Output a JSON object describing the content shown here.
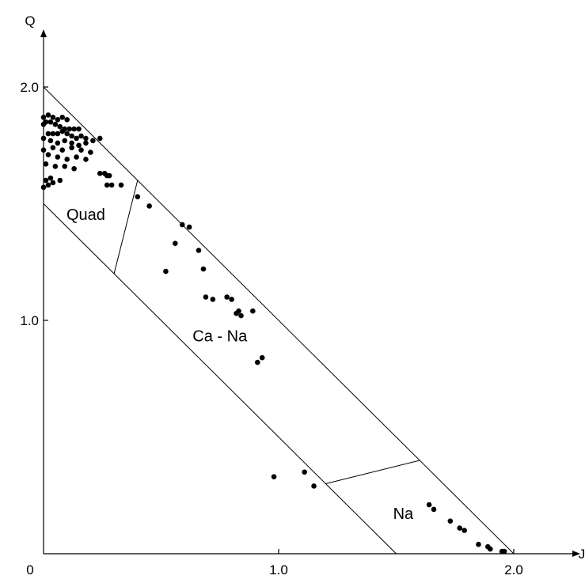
{
  "chart_data": {
    "type": "scatter",
    "title": "",
    "xlabel": "J",
    "ylabel": "Q",
    "origin_label": "0",
    "xlim": [
      0,
      2.25
    ],
    "ylim": [
      0,
      2.1
    ],
    "x_ticks": [
      {
        "value": 1.0,
        "label": "1.0"
      },
      {
        "value": 2.0,
        "label": "2.0"
      }
    ],
    "y_ticks": [
      {
        "value": 1.0,
        "label": "1.0"
      },
      {
        "value": 2.0,
        "label": "2.0"
      }
    ],
    "grid": false,
    "field_boundaries": [
      {
        "name": "upper-limit",
        "x": [
          0,
          2.0
        ],
        "y": [
          2.0,
          0
        ]
      },
      {
        "name": "lower-limit",
        "x": [
          0,
          1.5
        ],
        "y": [
          1.5,
          0
        ]
      },
      {
        "name": "quad-ca-na-divider",
        "x": [
          0.3,
          0.4
        ],
        "y": [
          1.2,
          1.6
        ]
      },
      {
        "name": "ca-na-na-divider",
        "x": [
          1.2,
          1.6
        ],
        "y": [
          0.3,
          0.4
        ]
      }
    ],
    "field_labels": [
      {
        "id": "quad",
        "text": "Quad",
        "x": 0.18,
        "y": 1.43
      },
      {
        "id": "ca-na",
        "text": "Ca - Na",
        "x": 0.75,
        "y": 0.91
      },
      {
        "id": "na",
        "text": "Na",
        "x": 1.53,
        "y": 0.15
      }
    ],
    "series": [
      {
        "marker": "filled-circle",
        "x": [
          0.0,
          0.02,
          0.04,
          0.06,
          0.08,
          0.1,
          0.01,
          0.03,
          0.05,
          0.07,
          0.09,
          0.11,
          0.13,
          0.15,
          0.0,
          0.02,
          0.04,
          0.06,
          0.08,
          0.1,
          0.12,
          0.14,
          0.16,
          0.18,
          0.0,
          0.03,
          0.06,
          0.09,
          0.12,
          0.15,
          0.18,
          0.21,
          0.24,
          0.0,
          0.04,
          0.08,
          0.12,
          0.16,
          0.2,
          0.02,
          0.06,
          0.1,
          0.14,
          0.18,
          0.01,
          0.05,
          0.09,
          0.13,
          0.03,
          0.07,
          0.01,
          0.04,
          0.0,
          0.02,
          0.24,
          0.26,
          0.27,
          0.28,
          0.27,
          0.29,
          0.33,
          0.4,
          0.45,
          0.52,
          0.56,
          0.59,
          0.62,
          0.66,
          0.68,
          0.69,
          0.72,
          0.78,
          0.8,
          0.82,
          0.83,
          0.84,
          0.89,
          0.91,
          0.93,
          0.98,
          1.11,
          1.15,
          1.64,
          1.66,
          1.73,
          1.77,
          1.79,
          1.85,
          1.89,
          1.9,
          1.95,
          1.96
        ],
        "y": [
          1.87,
          1.88,
          1.87,
          1.86,
          1.87,
          1.86,
          1.85,
          1.85,
          1.84,
          1.83,
          1.82,
          1.82,
          1.82,
          1.82,
          1.84,
          1.8,
          1.8,
          1.8,
          1.81,
          1.8,
          1.79,
          1.78,
          1.79,
          1.78,
          1.78,
          1.77,
          1.76,
          1.77,
          1.76,
          1.75,
          1.76,
          1.77,
          1.78,
          1.73,
          1.74,
          1.73,
          1.74,
          1.73,
          1.72,
          1.71,
          1.7,
          1.69,
          1.7,
          1.69,
          1.67,
          1.66,
          1.66,
          1.65,
          1.61,
          1.6,
          1.6,
          1.59,
          1.57,
          1.58,
          1.63,
          1.63,
          1.62,
          1.62,
          1.58,
          1.58,
          1.58,
          1.53,
          1.49,
          1.21,
          1.33,
          1.41,
          1.4,
          1.3,
          1.22,
          1.1,
          1.09,
          1.1,
          1.09,
          1.03,
          1.04,
          1.02,
          1.04,
          0.82,
          0.84,
          0.33,
          0.35,
          0.29,
          0.21,
          0.19,
          0.14,
          0.11,
          0.1,
          0.04,
          0.03,
          0.02,
          0.01,
          0.01
        ]
      }
    ]
  }
}
